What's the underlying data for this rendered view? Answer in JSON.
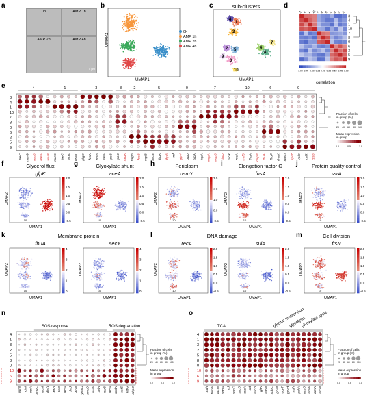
{
  "panels": {
    "a": {
      "label": "a",
      "conditions": [
        "0h",
        "AMP 1h",
        "AMP 2h",
        "AMP 4h"
      ],
      "scalebar": "5 µm"
    },
    "b": {
      "label": "b",
      "xlabel": "UMAP1",
      "ylabel": "UMAP2",
      "legend": [
        {
          "name": "0h",
          "color": "#3a8fc9"
        },
        {
          "name": "AMP 1h",
          "color": "#f7963b"
        },
        {
          "name": "AMP 2h",
          "color": "#3aa95a"
        },
        {
          "name": "AMP 4h",
          "color": "#e04848"
        }
      ]
    },
    "c": {
      "label": "c",
      "title": "sub-clusters",
      "xlabel": "UMAP1",
      "ylabel": "UMAP2",
      "cluster_labels": [
        "0",
        "1",
        "2",
        "3",
        "4",
        "5",
        "6",
        "7",
        "8",
        "9",
        "10"
      ]
    },
    "d": {
      "label": "d",
      "xlabel": "correlation",
      "order": [
        "3",
        "4",
        "1",
        "10",
        "7",
        "8",
        "0",
        "6",
        "2",
        "5",
        "9"
      ],
      "colorbar_ticks": [
        "-1.00",
        "-0.75",
        "-0.50",
        "-0.25",
        "0.00",
        "0.25",
        "0.50",
        "0.75",
        "1.00"
      ]
    },
    "e": {
      "label": "e",
      "group_headers": [
        "4",
        "1",
        "3",
        "8",
        "2",
        "5",
        "0",
        "7",
        "10",
        "6",
        "9"
      ],
      "rows": [
        "3",
        "4",
        "1",
        "10",
        "7",
        "8",
        "0",
        "6",
        "2",
        "5",
        "9"
      ],
      "genes": [
        "treC",
        "marG",
        "acuB",
        "aceA",
        "acuB",
        "marG",
        "treC",
        "fruA",
        "dnaK",
        "gkgE",
        "fusA",
        "fusB",
        "treA",
        "rpoB",
        "rpoB",
        "mrgA",
        "mrgB",
        "fusB",
        "mgtB",
        "hscB",
        "ibpA",
        "ibpB",
        "rmf",
        "glpY",
        "glpD",
        "hrpA",
        "hrpA",
        "mcpA",
        "mcpB",
        "lptD",
        "rccR",
        "rccA",
        "ymfB",
        "fhuA",
        "ompF",
        "fhuA",
        "fhuF",
        "dnaK",
        "deoD",
        "sprZ",
        "rplE",
        "rplR",
        "rpsB"
      ],
      "red_genes": [
        2,
        3,
        4,
        15,
        17,
        21,
        23,
        27,
        28,
        29,
        32,
        34,
        35,
        39,
        42
      ],
      "legend_size_title": "Fraction of cells in group (%)",
      "legend_size_ticks": [
        "20",
        "40",
        "60",
        "80",
        "100"
      ],
      "legend_color_title": "Mean expression in group",
      "legend_color_ticks": [
        "0.0",
        "0.5",
        "1.0"
      ]
    },
    "f": {
      "label": "f",
      "title": "Glycerol flux",
      "gene": "glpK",
      "ticks": [
        "2.0",
        "1.5",
        "1.0",
        "0.5",
        "0.0",
        "-0.5"
      ]
    },
    "g": {
      "label": "g",
      "title": "Glyoxylate shunt",
      "gene": "aceA",
      "ticks": [
        "2.0",
        "1.5",
        "1.0",
        "0.5",
        "0.0",
        "-0.5"
      ]
    },
    "h": {
      "label": "h",
      "title": "Periplasm",
      "gene": "osmY",
      "ticks": [
        "3.0",
        "2.0",
        "1.0",
        "0.0",
        "-0.5"
      ]
    },
    "i": {
      "label": "i",
      "title": "Elongation factor G",
      "gene": "fusA",
      "ticks": [
        "2.0",
        "1.5",
        "1.0",
        "0.5",
        "0.0",
        "-0.5"
      ]
    },
    "j": {
      "label": "j",
      "title": "Protein quality control",
      "gene": "ssrA",
      "ticks": [
        "2.0",
        "1.5",
        "1.0",
        "0.5",
        "0.0",
        "-0.5"
      ]
    },
    "k": {
      "label": "k",
      "title": "Membrane protein",
      "genes": [
        "fhuA",
        "secY"
      ],
      "ticks": [
        "4",
        "3",
        "2",
        "1",
        "0"
      ]
    },
    "l": {
      "label": "l",
      "title": "DNA damage",
      "genes": [
        "recA",
        "sulA"
      ],
      "ticks": [
        "2.0",
        "1.5",
        "1.0",
        "0.5",
        "0.0",
        "-0.5"
      ]
    },
    "m": {
      "label": "m",
      "title": "Cell division",
      "gene": "ftsN",
      "ticks": [
        "2.0",
        "1.5",
        "1.0",
        "0.5",
        "0.0",
        "-0.5"
      ]
    },
    "n": {
      "label": "n",
      "headers": [
        "SOS response",
        "ROS degradation"
      ],
      "rows": [
        "4",
        "1",
        "3",
        "2",
        "5",
        "8",
        "0",
        "10",
        "6",
        "9"
      ],
      "genes": [
        "uvrB",
        "dinI",
        "uvrA",
        "umuC",
        "recN",
        "dinD",
        "lexA",
        "tisB",
        "recA",
        "dinJ",
        "dinB",
        "yebG",
        "umuD",
        "ruvA",
        "sulA",
        "ruvB",
        "recA",
        "sodA",
        "katE",
        "katG",
        "ahpC"
      ],
      "legend_size_title": "Fraction of cells in group (%)",
      "legend_size_ticks": [
        "20",
        "40",
        "60",
        "80",
        "100"
      ],
      "legend_color_title": "Mean expression in group",
      "legend_color_ticks": [
        "0.0",
        "0.5",
        "1.0"
      ]
    },
    "o": {
      "label": "o",
      "headers": [
        "TCA",
        "glycine metabolism",
        "glycolysis",
        "glyoxylate cycle"
      ],
      "rows": [
        "4",
        "1",
        "3",
        "2",
        "5",
        "8",
        "0",
        "10",
        "6",
        "9"
      ],
      "genes": [
        "mdh",
        "fumA",
        "acnB",
        "sdhA",
        "icd",
        "sucC",
        "sucB",
        "sucA",
        "lpd",
        "sucD",
        "gltA",
        "sdhB",
        "sdhC",
        "gcvP",
        "gcvT",
        "gcvH",
        "mdh",
        "pckA",
        "aceB",
        "aceA",
        "acnA",
        "acnB"
      ],
      "legend_size_title": "Fraction of cells in group (%)",
      "legend_size_ticks": [
        "20",
        "40",
        "60",
        "80",
        "100"
      ],
      "legend_color_title": "Mean expression in group",
      "legend_color_ticks": [
        "0.0",
        "0.5",
        "1.0"
      ]
    }
  }
}
